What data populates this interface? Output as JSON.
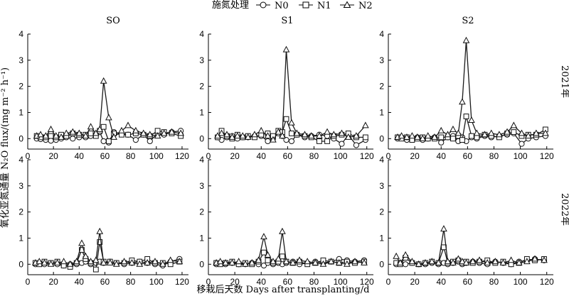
{
  "legend": {
    "title": "施氮处理",
    "entries": [
      {
        "name": "N0",
        "marker": "circle"
      },
      {
        "name": "N1",
        "marker": "square"
      },
      {
        "name": "N2",
        "marker": "triangle"
      }
    ],
    "placement": "top-center"
  },
  "figure": {
    "ylabel": "氧化亚氮通量 N₂O flux/(mg m⁻² h⁻¹)",
    "xlabel": "移栽后天数 Days after transplanting/d",
    "row_labels": [
      "2021年",
      "2022年"
    ],
    "col_titles": [
      "SO",
      "S1",
      "S2"
    ],
    "colors": {
      "line": "#1a1a1a",
      "axis": "#000000",
      "background": "#ffffff"
    }
  },
  "chart_data": [
    {
      "type": "line",
      "panel": "SO-2021",
      "xlim": [
        0,
        125
      ],
      "ylim": [
        -0.4,
        4
      ],
      "xticks": [
        0,
        20,
        40,
        60,
        80,
        100,
        120
      ],
      "yticks": [
        0,
        1,
        2,
        3,
        4
      ],
      "series": [
        {
          "name": "N0",
          "x": [
            7,
            10,
            14,
            18,
            22,
            26,
            30,
            35,
            40,
            45,
            49,
            53,
            56,
            59,
            63,
            67,
            73,
            78,
            84,
            90,
            95,
            101,
            106,
            112,
            119
          ],
          "y": [
            0.0,
            -0.02,
            -0.05,
            -0.08,
            -0.05,
            0.0,
            0.05,
            0.0,
            0.05,
            0.05,
            0.1,
            0.15,
            0.25,
            -0.1,
            -0.15,
            0.25,
            0.2,
            0.15,
            -0.05,
            0.15,
            -0.1,
            0.2,
            0.15,
            0.25,
            0.3
          ]
        },
        {
          "name": "N1",
          "x": [
            7,
            10,
            14,
            18,
            22,
            26,
            30,
            35,
            40,
            45,
            49,
            53,
            56,
            59,
            63,
            67,
            73,
            78,
            84,
            90,
            95,
            101,
            106,
            112,
            119
          ],
          "y": [
            0.1,
            0.05,
            0.05,
            0.1,
            0.05,
            0.15,
            0.1,
            0.2,
            0.15,
            0.15,
            0.2,
            0.1,
            0.3,
            0.45,
            -0.1,
            0.2,
            0.15,
            0.15,
            0.2,
            0.15,
            0.1,
            0.3,
            0.25,
            0.2,
            0.1
          ]
        },
        {
          "name": "N2",
          "x": [
            7,
            10,
            14,
            18,
            22,
            26,
            30,
            35,
            40,
            45,
            49,
            53,
            56,
            59,
            63,
            67,
            73,
            78,
            84,
            90,
            95,
            101,
            106,
            112,
            119
          ],
          "y": [
            0.1,
            0.15,
            0.1,
            0.35,
            0.1,
            0.05,
            0.2,
            0.25,
            0.2,
            0.1,
            0.45,
            0.2,
            0.35,
            2.2,
            0.8,
            0.05,
            0.3,
            0.5,
            0.3,
            0.2,
            0.15,
            0.1,
            0.2,
            0.25,
            0.2
          ]
        }
      ]
    },
    {
      "type": "line",
      "panel": "S1-2021",
      "xlim": [
        0,
        125
      ],
      "ylim": [
        -0.4,
        4
      ],
      "xticks": [
        0,
        20,
        40,
        60,
        80,
        100,
        120
      ],
      "yticks": [
        0,
        1,
        2,
        3,
        4
      ],
      "series": [
        {
          "name": "N0",
          "x": [
            7,
            10,
            14,
            18,
            22,
            26,
            30,
            35,
            40,
            45,
            49,
            53,
            56,
            59,
            63,
            67,
            73,
            78,
            84,
            90,
            95,
            101,
            106,
            112,
            119
          ],
          "y": [
            0.05,
            -0.05,
            0.05,
            0.1,
            0.0,
            0.05,
            0.05,
            0.1,
            0.1,
            -0.1,
            0.0,
            0.2,
            0.1,
            -0.05,
            -0.1,
            0.15,
            0.05,
            0.1,
            0.15,
            0.1,
            0.0,
            -0.2,
            0.15,
            -0.25,
            -0.05
          ]
        },
        {
          "name": "N1",
          "x": [
            7,
            10,
            14,
            18,
            22,
            26,
            30,
            35,
            40,
            45,
            49,
            53,
            56,
            59,
            63,
            67,
            73,
            78,
            84,
            90,
            95,
            101,
            106,
            112,
            119
          ],
          "y": [
            0.05,
            0.3,
            0.1,
            0.0,
            0.15,
            0.05,
            0.1,
            0.05,
            0.15,
            0.2,
            0.1,
            0.3,
            0.25,
            0.75,
            0.2,
            0.15,
            0.1,
            0.05,
            -0.1,
            -0.1,
            0.1,
            0.15,
            0.2,
            0.05,
            0.05
          ]
        },
        {
          "name": "N2",
          "x": [
            7,
            10,
            14,
            18,
            22,
            26,
            30,
            35,
            40,
            45,
            49,
            53,
            56,
            59,
            63,
            67,
            73,
            78,
            84,
            90,
            95,
            101,
            106,
            112,
            119
          ],
          "y": [
            0.1,
            0.2,
            0.15,
            0.05,
            0.1,
            0.1,
            0.05,
            0.15,
            0.3,
            0.1,
            -0.05,
            0.25,
            0.1,
            3.4,
            0.6,
            0.2,
            0.15,
            0.1,
            0.1,
            0.25,
            0.15,
            0.2,
            0.05,
            0.1,
            0.5
          ]
        }
      ]
    },
    {
      "type": "line",
      "panel": "S2-2021",
      "xlim": [
        0,
        125
      ],
      "ylim": [
        -0.4,
        4
      ],
      "xticks": [
        0,
        20,
        40,
        60,
        80,
        100,
        120
      ],
      "yticks": [
        0,
        1,
        2,
        3,
        4
      ],
      "series": [
        {
          "name": "N0",
          "x": [
            7,
            10,
            14,
            18,
            22,
            26,
            30,
            35,
            40,
            45,
            49,
            53,
            56,
            59,
            63,
            67,
            73,
            78,
            84,
            90,
            95,
            101,
            106,
            112,
            119
          ],
          "y": [
            0.0,
            0.05,
            -0.05,
            0.0,
            0.05,
            -0.05,
            0.0,
            0.05,
            -0.15,
            0.05,
            0.1,
            -0.1,
            0.05,
            -0.1,
            0.05,
            0.0,
            0.1,
            0.05,
            0.1,
            0.15,
            0.2,
            -0.2,
            0.0,
            0.05,
            0.1
          ]
        },
        {
          "name": "N1",
          "x": [
            7,
            10,
            14,
            18,
            22,
            26,
            30,
            35,
            40,
            45,
            49,
            53,
            56,
            59,
            63,
            67,
            73,
            78,
            84,
            90,
            95,
            101,
            106,
            112,
            119
          ],
          "y": [
            0.05,
            0.0,
            0.05,
            -0.05,
            0.0,
            0.05,
            0.0,
            0.0,
            0.05,
            0.05,
            0.0,
            0.1,
            -0.05,
            0.85,
            0.1,
            0.05,
            0.15,
            0.1,
            0.05,
            0.2,
            0.25,
            0.1,
            0.15,
            0.15,
            0.35
          ]
        },
        {
          "name": "N2",
          "x": [
            7,
            10,
            14,
            18,
            22,
            26,
            30,
            35,
            40,
            45,
            49,
            53,
            56,
            59,
            63,
            67,
            73,
            78,
            84,
            90,
            95,
            101,
            106,
            112,
            119
          ],
          "y": [
            0.05,
            0.1,
            0.05,
            0.1,
            0.05,
            0.0,
            0.1,
            0.05,
            0.3,
            0.15,
            0.35,
            0.2,
            1.4,
            3.75,
            0.7,
            0.2,
            0.15,
            0.2,
            0.15,
            0.25,
            0.5,
            0.2,
            0.1,
            0.2,
            0.2
          ]
        }
      ]
    },
    {
      "type": "line",
      "panel": "SO-2022",
      "xlim": [
        0,
        125
      ],
      "ylim": [
        -0.4,
        4
      ],
      "xticks": [
        0,
        20,
        40,
        60,
        80,
        100,
        120
      ],
      "yticks": [
        0,
        1,
        2,
        3,
        4
      ],
      "series": [
        {
          "name": "N0",
          "x": [
            6,
            9,
            13,
            18,
            23,
            28,
            33,
            38,
            42,
            45,
            49,
            53,
            56,
            59,
            64,
            69,
            75,
            81,
            87,
            93,
            99,
            105,
            111,
            118
          ],
          "y": [
            0.0,
            0.05,
            0.0,
            0.05,
            0.0,
            -0.05,
            0.0,
            0.0,
            0.05,
            0.1,
            0.0,
            0.05,
            0.1,
            0.05,
            0.1,
            0.05,
            0.0,
            0.05,
            0.1,
            0.05,
            0.0,
            -0.05,
            0.1,
            0.2
          ]
        },
        {
          "name": "N1",
          "x": [
            6,
            9,
            13,
            18,
            23,
            28,
            33,
            38,
            42,
            45,
            49,
            53,
            56,
            59,
            64,
            69,
            75,
            81,
            87,
            93,
            99,
            105,
            111,
            118
          ],
          "y": [
            0.05,
            0.0,
            0.1,
            0.05,
            0.1,
            -0.05,
            -0.1,
            0.05,
            0.55,
            0.2,
            0.05,
            -0.2,
            0.85,
            0.1,
            0.1,
            0.05,
            0.05,
            0.15,
            0.1,
            0.2,
            0.05,
            0.05,
            0.0,
            0.1
          ]
        },
        {
          "name": "N2",
          "x": [
            6,
            9,
            13,
            18,
            23,
            28,
            33,
            38,
            42,
            45,
            49,
            53,
            56,
            59,
            64,
            69,
            75,
            81,
            87,
            93,
            99,
            105,
            111,
            118
          ],
          "y": [
            0.05,
            0.1,
            0.05,
            0.0,
            0.05,
            0.1,
            0.0,
            0.1,
            0.8,
            0.3,
            0.1,
            0.15,
            1.25,
            0.05,
            0.05,
            0.0,
            0.1,
            0.05,
            0.0,
            0.05,
            0.1,
            0.0,
            0.15,
            0.1
          ]
        }
      ]
    },
    {
      "type": "line",
      "panel": "S1-2022",
      "xlim": [
        0,
        125
      ],
      "ylim": [
        -0.4,
        4
      ],
      "xticks": [
        0,
        20,
        40,
        60,
        80,
        100,
        120
      ],
      "yticks": [
        0,
        1,
        2,
        3,
        4
      ],
      "series": [
        {
          "name": "N0",
          "x": [
            6,
            9,
            13,
            18,
            23,
            28,
            33,
            38,
            42,
            45,
            49,
            53,
            56,
            59,
            64,
            69,
            75,
            81,
            87,
            93,
            99,
            105,
            111,
            118
          ],
          "y": [
            0.0,
            0.05,
            0.0,
            0.05,
            0.0,
            0.0,
            0.05,
            0.0,
            -0.05,
            0.05,
            0.0,
            0.05,
            0.0,
            0.05,
            0.1,
            0.0,
            0.05,
            0.1,
            0.05,
            0.1,
            0.2,
            0.15,
            0.1,
            0.15
          ]
        },
        {
          "name": "N1",
          "x": [
            6,
            9,
            13,
            18,
            23,
            28,
            33,
            38,
            42,
            45,
            49,
            53,
            56,
            59,
            64,
            69,
            75,
            81,
            87,
            93,
            99,
            105,
            111,
            118
          ],
          "y": [
            0.05,
            0.0,
            0.05,
            0.1,
            0.0,
            0.05,
            0.0,
            0.1,
            0.45,
            0.15,
            0.05,
            0.1,
            0.3,
            0.1,
            0.05,
            0.1,
            0.0,
            0.05,
            0.15,
            0.1,
            0.05,
            0.1,
            0.05,
            0.1
          ]
        },
        {
          "name": "N2",
          "x": [
            6,
            9,
            13,
            18,
            23,
            28,
            33,
            38,
            42,
            45,
            49,
            53,
            56,
            59,
            64,
            69,
            75,
            81,
            87,
            93,
            99,
            105,
            111,
            118
          ],
          "y": [
            0.05,
            0.1,
            0.05,
            0.05,
            0.1,
            0.0,
            0.05,
            0.15,
            1.05,
            0.35,
            0.1,
            0.2,
            1.25,
            0.1,
            0.05,
            0.15,
            0.1,
            0.05,
            0.0,
            0.1,
            0.05,
            0.0,
            0.1,
            0.05
          ]
        }
      ]
    },
    {
      "type": "line",
      "panel": "S2-2022",
      "xlim": [
        0,
        125
      ],
      "ylim": [
        -0.4,
        4
      ],
      "xticks": [
        0,
        20,
        40,
        60,
        80,
        100,
        120
      ],
      "yticks": [
        0,
        1,
        2,
        3,
        4
      ],
      "series": [
        {
          "name": "N0",
          "x": [
            6,
            9,
            13,
            18,
            23,
            28,
            33,
            38,
            42,
            45,
            49,
            53,
            56,
            59,
            64,
            69,
            75,
            81,
            87,
            93,
            99,
            105,
            111,
            118
          ],
          "y": [
            0.0,
            0.05,
            0.0,
            0.05,
            0.0,
            0.0,
            0.05,
            0.0,
            0.05,
            0.0,
            0.05,
            0.1,
            0.0,
            0.05,
            0.1,
            0.05,
            0.0,
            0.1,
            0.05,
            0.0,
            0.1,
            0.15,
            0.2,
            0.15
          ]
        },
        {
          "name": "N1",
          "x": [
            6,
            9,
            13,
            18,
            23,
            28,
            33,
            38,
            42,
            45,
            49,
            53,
            56,
            59,
            64,
            69,
            75,
            81,
            87,
            93,
            99,
            105,
            111,
            118
          ],
          "y": [
            0.05,
            0.0,
            0.25,
            0.05,
            0.0,
            0.05,
            0.1,
            0.05,
            0.65,
            0.05,
            0.1,
            0.15,
            0.05,
            0.1,
            0.05,
            0.1,
            0.15,
            0.05,
            0.1,
            0.0,
            0.05,
            0.2,
            0.15,
            0.2
          ]
        },
        {
          "name": "N2",
          "x": [
            6,
            9,
            13,
            18,
            23,
            28,
            33,
            38,
            42,
            45,
            49,
            53,
            56,
            59,
            64,
            69,
            75,
            81,
            87,
            93,
            99,
            105,
            111,
            118
          ],
          "y": [
            0.3,
            0.05,
            0.35,
            0.1,
            0.0,
            0.05,
            0.1,
            0.05,
            1.35,
            0.1,
            0.05,
            0.2,
            0.1,
            0.05,
            0.1,
            0.15,
            0.05,
            0.1,
            0.05,
            0.15,
            0.05,
            0.1,
            0.2,
            0.15
          ]
        }
      ]
    }
  ]
}
